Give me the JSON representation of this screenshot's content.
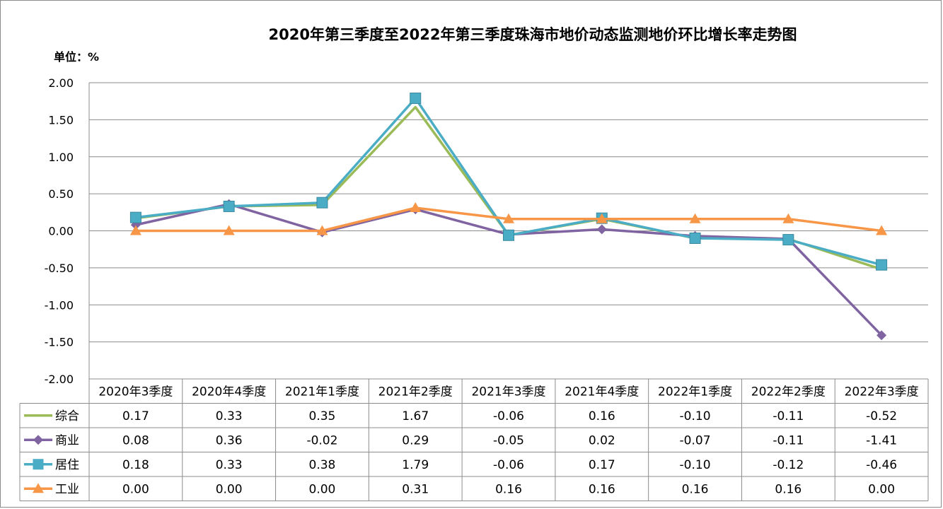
{
  "chart_data": {
    "type": "line",
    "title": "2020年第三季度至2022年第三季度珠海市地价动态监测地价环比增长率走势图",
    "unit_label": "单位：%",
    "categories": [
      "2020年3季度",
      "2020年4季度",
      "2021年1季度",
      "2021年2季度",
      "2021年3季度",
      "2021年4季度",
      "2022年1季度",
      "2022年2季度",
      "2022年3季度"
    ],
    "ylim": [
      -2.0,
      2.0
    ],
    "yticks": [
      "2.00",
      "1.50",
      "1.00",
      "0.50",
      "0.00",
      "-0.50",
      "-1.00",
      "-1.50",
      "-2.00"
    ],
    "grid": true,
    "legend": "data-table-left",
    "series": [
      {
        "name": "综合",
        "color": "#9BBB59",
        "marker": "none",
        "values": [
          0.17,
          0.33,
          0.35,
          1.67,
          -0.06,
          0.16,
          -0.1,
          -0.11,
          -0.52
        ],
        "labels": [
          "0.17",
          "0.33",
          "0.35",
          "1.67",
          "-0.06",
          "0.16",
          "-0.10",
          "-0.11",
          "-0.52"
        ]
      },
      {
        "name": "商业",
        "color": "#8064A2",
        "marker": "diamond",
        "values": [
          0.08,
          0.36,
          -0.02,
          0.29,
          -0.05,
          0.02,
          -0.07,
          -0.11,
          -1.41
        ],
        "labels": [
          "0.08",
          "0.36",
          "-0.02",
          "0.29",
          "-0.05",
          "0.02",
          "-0.07",
          "-0.11",
          "-1.41"
        ]
      },
      {
        "name": "居住",
        "color": "#4BACC6",
        "marker": "square",
        "values": [
          0.18,
          0.33,
          0.38,
          1.79,
          -0.06,
          0.17,
          -0.1,
          -0.12,
          -0.46
        ],
        "labels": [
          "0.18",
          "0.33",
          "0.38",
          "1.79",
          "-0.06",
          "0.17",
          "-0.10",
          "-0.12",
          "-0.46"
        ]
      },
      {
        "name": "工业",
        "color": "#F79646",
        "marker": "triangle",
        "values": [
          0.0,
          0.0,
          0.0,
          0.31,
          0.16,
          0.16,
          0.16,
          0.16,
          0.0
        ],
        "labels": [
          "0.00",
          "0.00",
          "0.00",
          "0.31",
          "0.16",
          "0.16",
          "0.16",
          "0.16",
          "0.00"
        ]
      }
    ]
  }
}
